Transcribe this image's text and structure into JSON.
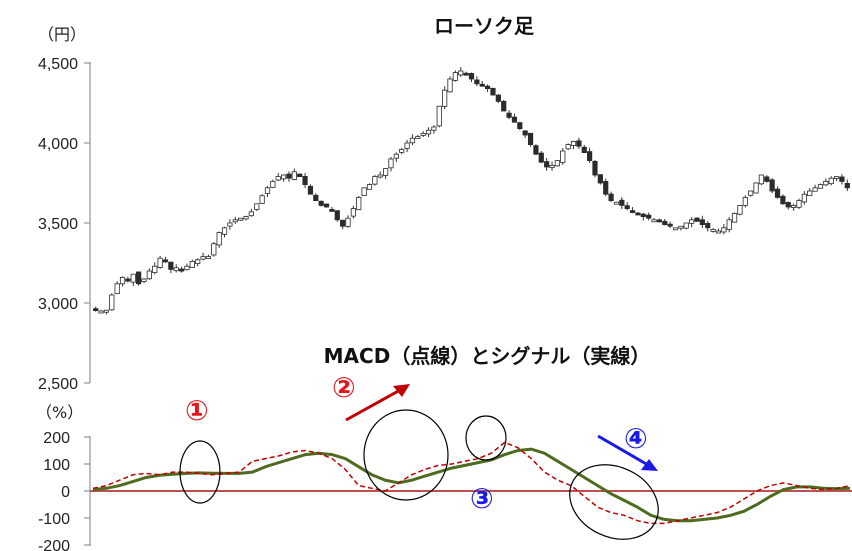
{
  "chart_data": [
    {
      "type": "candlestick",
      "title": "ローソク足",
      "ylabel": "（円）",
      "ylim": [
        2500,
        4500
      ],
      "yticks": [
        "4,500",
        "4,000",
        "3,500",
        "3,000",
        "2,500"
      ],
      "ytick_values": [
        4500,
        4000,
        3500,
        3000,
        2500
      ],
      "n_days": 220,
      "approx_close": [
        2960,
        2950,
        2955,
        3050,
        3120,
        3160,
        3140,
        3180,
        3120,
        3150,
        3200,
        3230,
        3280,
        3260,
        3210,
        3220,
        3200,
        3230,
        3260,
        3270,
        3290,
        3290,
        3370,
        3440,
        3470,
        3500,
        3520,
        3530,
        3540,
        3570,
        3620,
        3670,
        3720,
        3760,
        3790,
        3800,
        3780,
        3820,
        3790,
        3740,
        3680,
        3640,
        3610,
        3600,
        3580,
        3520,
        3480,
        3530,
        3590,
        3660,
        3720,
        3740,
        3790,
        3800,
        3840,
        3900,
        3930,
        3960,
        4000,
        4030,
        4040,
        4060,
        4080,
        4100,
        4230,
        4330,
        4400,
        4440,
        4450,
        4430,
        4400,
        4370,
        4360,
        4340,
        4300,
        4260,
        4200,
        4160,
        4130,
        4090,
        4050,
        3990,
        3930,
        3880,
        3850,
        3860,
        3890,
        3950,
        3990,
        4010,
        3980,
        3940,
        3890,
        3800,
        3750,
        3680,
        3640,
        3630,
        3610,
        3590,
        3570,
        3560,
        3540,
        3530,
        3520,
        3510,
        3490,
        3480,
        3470,
        3480,
        3500,
        3520,
        3510,
        3490,
        3470,
        3460,
        3450,
        3470,
        3520,
        3560,
        3610,
        3660,
        3700,
        3750,
        3800,
        3760,
        3700,
        3660,
        3620,
        3600,
        3610,
        3640,
        3680,
        3700,
        3720,
        3740,
        3760,
        3780,
        3790,
        3760,
        3720
      ],
      "markers": [
        {
          "label": "①",
          "color": "#e8161b"
        },
        {
          "label": "②",
          "color": "#e8161b"
        },
        {
          "label": "③",
          "color": "#1a1ae8"
        },
        {
          "label": "④",
          "color": "#1a1ae8"
        }
      ]
    },
    {
      "type": "line",
      "title": "MACD（点線）とシグナル（実線）",
      "ylabel": "（%）",
      "ylim": [
        -200,
        200
      ],
      "yticks": [
        "200",
        "100",
        "0",
        "-100",
        "-200"
      ],
      "ytick_values": [
        200,
        100,
        0,
        -100,
        -200
      ],
      "series": [
        {
          "color": "#c00000",
          "style": "dashed",
          "values": [
            10,
            20,
            40,
            60,
            65,
            60,
            70,
            70,
            65,
            60,
            65,
            70,
            110,
            120,
            130,
            145,
            150,
            140,
            120,
            80,
            20,
            10,
            0,
            30,
            60,
            80,
            95,
            100,
            110,
            120,
            140,
            180,
            160,
            120,
            70,
            40,
            20,
            -20,
            -60,
            -80,
            -90,
            -110,
            -120,
            -120,
            -110,
            -100,
            -90,
            -80,
            -60,
            -30,
            0,
            20,
            30,
            20,
            10,
            5,
            10,
            20
          ]
        },
        {
          "color": "#4e6b1f",
          "style": "solid",
          "values": [
            5,
            10,
            20,
            35,
            50,
            58,
            62,
            65,
            67,
            66,
            65,
            65,
            70,
            90,
            105,
            120,
            135,
            140,
            135,
            120,
            90,
            60,
            40,
            30,
            40,
            55,
            70,
            85,
            95,
            105,
            115,
            135,
            150,
            155,
            140,
            110,
            80,
            50,
            20,
            -10,
            -35,
            -60,
            -90,
            -105,
            -110,
            -110,
            -105,
            -100,
            -90,
            -75,
            -50,
            -20,
            5,
            15,
            15,
            10,
            8,
            10
          ]
        }
      ],
      "zero_line_color": "#c0504d"
    }
  ]
}
